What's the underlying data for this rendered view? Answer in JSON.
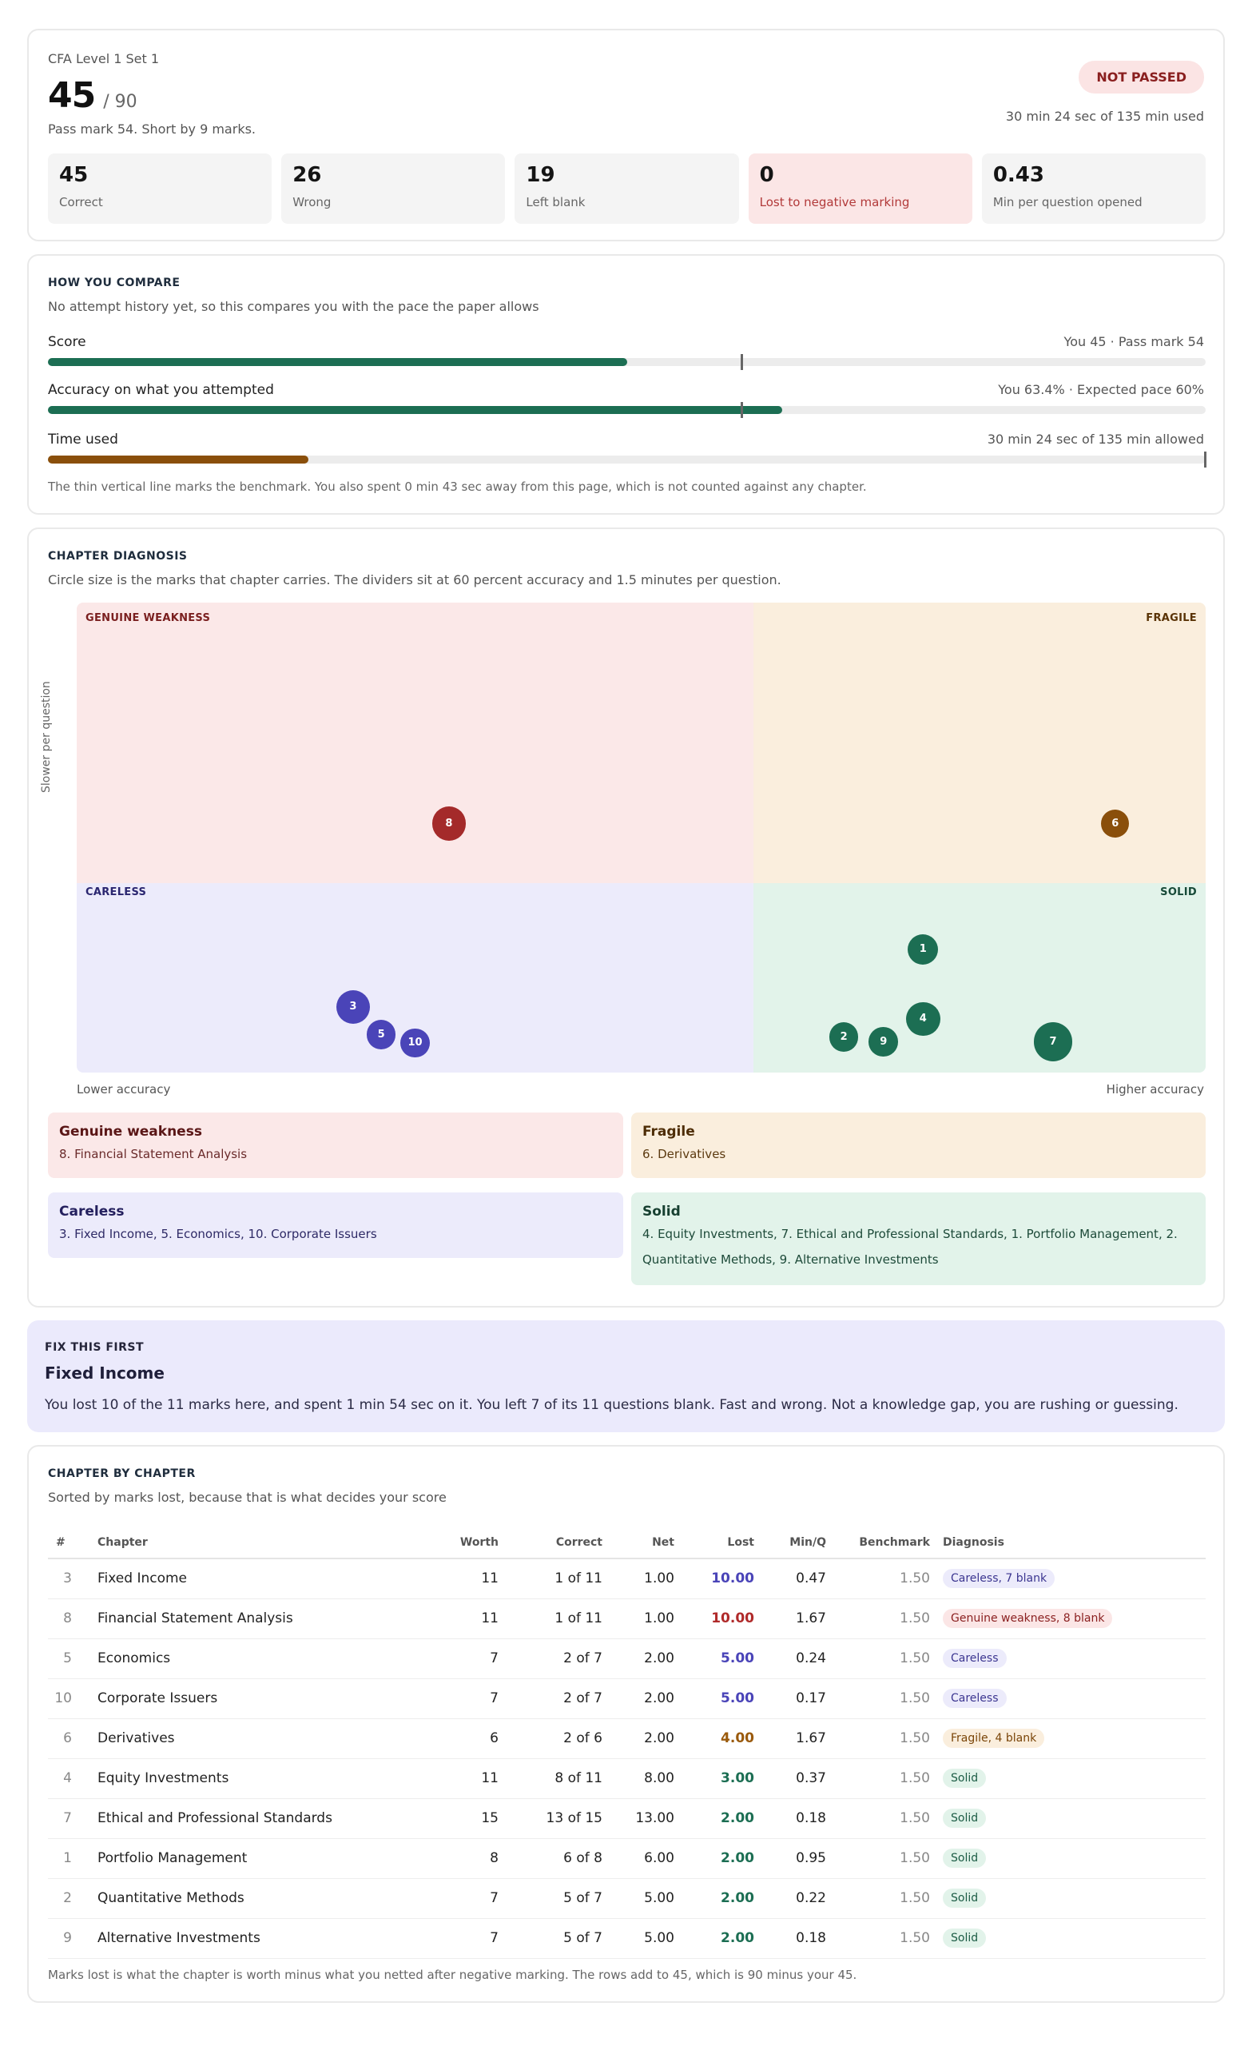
{
  "header": {
    "set_name": "CFA Level 1 Set 1",
    "score": "45",
    "total": "/ 90",
    "pass_note": "Pass mark 54. Short by 9 marks.",
    "status": "NOT PASSED",
    "time_used": "30 min 24 sec of 135 min used",
    "stats": [
      {
        "value": "45",
        "label": "Correct"
      },
      {
        "value": "26",
        "label": "Wrong"
      },
      {
        "value": "19",
        "label": "Left blank"
      },
      {
        "value": "0",
        "label": "Lost to negative marking"
      },
      {
        "value": "0.43",
        "label": "Min per question opened"
      }
    ]
  },
  "compare": {
    "section_label": "HOW YOU COMPARE",
    "subtitle": "No attempt history yet, so this compares you with the pace the paper allows",
    "metrics": [
      {
        "name": "Score",
        "value_text": "You 45 · Pass mark 54",
        "fill": 0.5,
        "benchmark": 0.6,
        "color": "#1c6e53"
      },
      {
        "name": "Accuracy on what you attempted",
        "value_text": "You 63.4% · Expected pace 60%",
        "fill": 0.634,
        "benchmark": 0.6,
        "color": "#1c6e53"
      },
      {
        "name": "Time used",
        "value_text": "30 min 24 sec of 135 min allowed",
        "fill": 0.225,
        "benchmark": 1.0,
        "color": "#8a4f0b"
      }
    ],
    "footnote": "The thin vertical line marks the benchmark. You also spent 0 min 43 sec away from this page, which is not counted against any chapter."
  },
  "diagnosis": {
    "section_label": "CHAPTER DIAGNOSIS",
    "subtitle": "Circle size is the marks that chapter carries. The dividers sit at 60 percent accuracy and 1.5 minutes per question.",
    "quadrants": {
      "genuine": "GENUINE WEAKNESS",
      "fragile": "FRAGILE",
      "careless": "CARELESS",
      "solid": "SOLID"
    },
    "y_axis": "Slower per question",
    "x_low": "Lower accuracy",
    "x_high": "Higher accuracy",
    "colors": {
      "genuine": "#fbe8e8",
      "fragile": "#faeedd",
      "careless": "#ecebfb",
      "solid": "#e2f3ea"
    },
    "bubbles": [
      {
        "id": "8",
        "accuracy": 0.33,
        "min_per_q": 1.67,
        "worth": 11,
        "color": "#a42a2a"
      },
      {
        "id": "6",
        "accuracy": 0.92,
        "min_per_q": 1.67,
        "worth": 6,
        "color": "#8a4f0b"
      },
      {
        "id": "1",
        "accuracy": 0.75,
        "min_per_q": 0.95,
        "worth": 8,
        "color": "#1c6e53"
      },
      {
        "id": "3",
        "accuracy": 0.245,
        "min_per_q": 0.47,
        "worth": 11,
        "color": "#4a44b8"
      },
      {
        "id": "5",
        "accuracy": 0.27,
        "min_per_q": 0.24,
        "worth": 7,
        "color": "#4a44b8"
      },
      {
        "id": "10",
        "accuracy": 0.3,
        "min_per_q": 0.17,
        "worth": 7,
        "color": "#4a44b8"
      },
      {
        "id": "2",
        "accuracy": 0.68,
        "min_per_q": 0.22,
        "worth": 7,
        "color": "#1c6e53"
      },
      {
        "id": "9",
        "accuracy": 0.715,
        "min_per_q": 0.18,
        "worth": 7,
        "color": "#1c6e53"
      },
      {
        "id": "4",
        "accuracy": 0.75,
        "min_per_q": 0.37,
        "worth": 11,
        "color": "#1c6e53"
      },
      {
        "id": "7",
        "accuracy": 0.865,
        "min_per_q": 0.18,
        "worth": 15,
        "color": "#1c6e53"
      }
    ],
    "boxes": {
      "genuine": {
        "title": "Genuine weakness",
        "list": "8. Financial Statement Analysis"
      },
      "fragile": {
        "title": "Fragile",
        "list": "6. Derivatives"
      },
      "careless": {
        "title": "Careless",
        "list": "3. Fixed Income, 5. Economics, 10. Corporate Issuers"
      },
      "solid": {
        "title": "Solid",
        "list": "4. Equity Investments, 7. Ethical and Professional Standards, 1. Portfolio Management, 2. Quantitative Methods, 9. Alternative Investments"
      }
    }
  },
  "fix_first": {
    "label": "FIX THIS FIRST",
    "title": "Fixed Income",
    "body": "You lost 10 of the 11 marks here, and spent 1 min 54 sec on it. You left 7 of its 11 questions blank. Fast and wrong. Not a knowledge gap, you are rushing or guessing."
  },
  "table": {
    "section_label": "CHAPTER BY CHAPTER",
    "subtitle": "Sorted by marks lost, because that is what decides your score",
    "headers": [
      "#",
      "Chapter",
      "Worth",
      "Correct",
      "Net",
      "Lost",
      "Min/Q",
      "Benchmark",
      "Diagnosis"
    ],
    "rows": [
      {
        "n": "3",
        "chapter": "Fixed Income",
        "worth": "11",
        "correct": "1 of 11",
        "net": "1.00",
        "lost": "10.00",
        "minq": "0.47",
        "bench": "1.50",
        "diag": "Careless, 7 blank",
        "kind": "careless"
      },
      {
        "n": "8",
        "chapter": "Financial Statement Analysis",
        "worth": "11",
        "correct": "1 of 11",
        "net": "1.00",
        "lost": "10.00",
        "minq": "1.67",
        "bench": "1.50",
        "diag": "Genuine weakness, 8 blank",
        "kind": "genuine"
      },
      {
        "n": "5",
        "chapter": "Economics",
        "worth": "7",
        "correct": "2 of 7",
        "net": "2.00",
        "lost": "5.00",
        "minq": "0.24",
        "bench": "1.50",
        "diag": "Careless",
        "kind": "careless"
      },
      {
        "n": "10",
        "chapter": "Corporate Issuers",
        "worth": "7",
        "correct": "2 of 7",
        "net": "2.00",
        "lost": "5.00",
        "minq": "0.17",
        "bench": "1.50",
        "diag": "Careless",
        "kind": "careless"
      },
      {
        "n": "6",
        "chapter": "Derivatives",
        "worth": "6",
        "correct": "2 of 6",
        "net": "2.00",
        "lost": "4.00",
        "minq": "1.67",
        "bench": "1.50",
        "diag": "Fragile, 4 blank",
        "kind": "fragile"
      },
      {
        "n": "4",
        "chapter": "Equity Investments",
        "worth": "11",
        "correct": "8 of 11",
        "net": "8.00",
        "lost": "3.00",
        "minq": "0.37",
        "bench": "1.50",
        "diag": "Solid",
        "kind": "solid"
      },
      {
        "n": "7",
        "chapter": "Ethical and Professional Standards",
        "worth": "15",
        "correct": "13 of 15",
        "net": "13.00",
        "lost": "2.00",
        "minq": "0.18",
        "bench": "1.50",
        "diag": "Solid",
        "kind": "solid"
      },
      {
        "n": "1",
        "chapter": "Portfolio Management",
        "worth": "8",
        "correct": "6 of 8",
        "net": "6.00",
        "lost": "2.00",
        "minq": "0.95",
        "bench": "1.50",
        "diag": "Solid",
        "kind": "solid"
      },
      {
        "n": "2",
        "chapter": "Quantitative Methods",
        "worth": "7",
        "correct": "5 of 7",
        "net": "5.00",
        "lost": "2.00",
        "minq": "0.22",
        "bench": "1.50",
        "diag": "Solid",
        "kind": "solid"
      },
      {
        "n": "9",
        "chapter": "Alternative Investments",
        "worth": "7",
        "correct": "5 of 7",
        "net": "5.00",
        "lost": "2.00",
        "minq": "0.18",
        "bench": "1.50",
        "diag": "Solid",
        "kind": "solid"
      }
    ],
    "kind_styles": {
      "careless": {
        "lost": "#4a44b8",
        "pill_bg": "#ecebfb",
        "pill_fg": "#3b3590"
      },
      "genuine": {
        "lost": "#b02a2a",
        "pill_bg": "#fbe6e6",
        "pill_fg": "#8a1f1f"
      },
      "fragile": {
        "lost": "#9a5a0c",
        "pill_bg": "#faeedd",
        "pill_fg": "#7a4508"
      },
      "solid": {
        "lost": "#1c6e53",
        "pill_bg": "#e2f3ea",
        "pill_fg": "#1c5c45"
      }
    },
    "footnote": "Marks lost is what the chapter is worth minus what you netted after negative marking. The rows add to 45, which is 90 minus your 45."
  }
}
